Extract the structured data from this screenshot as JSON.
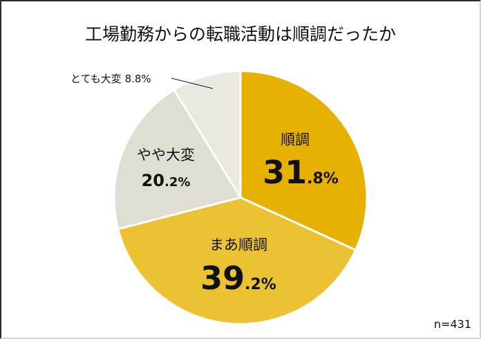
{
  "chart_data": {
    "type": "pie",
    "title": "工場勤務からの転職活動は順調だったか",
    "categories": [
      "順調",
      "まあ順調",
      "やや大変",
      "とても大変"
    ],
    "values": [
      31.8,
      39.2,
      20.2,
      8.8
    ],
    "unit": "%",
    "colors": [
      "#E6B100",
      "#EBC232",
      "#DEDED2",
      "#E9E9E2"
    ],
    "start_angle": "12 o'clock",
    "direction": "clockwise",
    "sample_size": "n=431",
    "legend": "none (labels on slices)"
  },
  "title": "工場勤務からの転職活動は順調だったか",
  "slices": [
    {
      "label": "順調",
      "int": "31",
      "dec": ".8%",
      "color": "#E6B100"
    },
    {
      "label": "まあ順調",
      "int": "39",
      "dec": ".2%",
      "color": "#EBC232"
    },
    {
      "label": "やや大変",
      "int": "20",
      "dec": ".2%",
      "color": "#DEDED2"
    },
    {
      "label": "とても大変",
      "value_text": "8.8%",
      "color": "#E9E9E2"
    }
  ],
  "small_label": "とても大変 8.8%",
  "sample_size": "n=431"
}
